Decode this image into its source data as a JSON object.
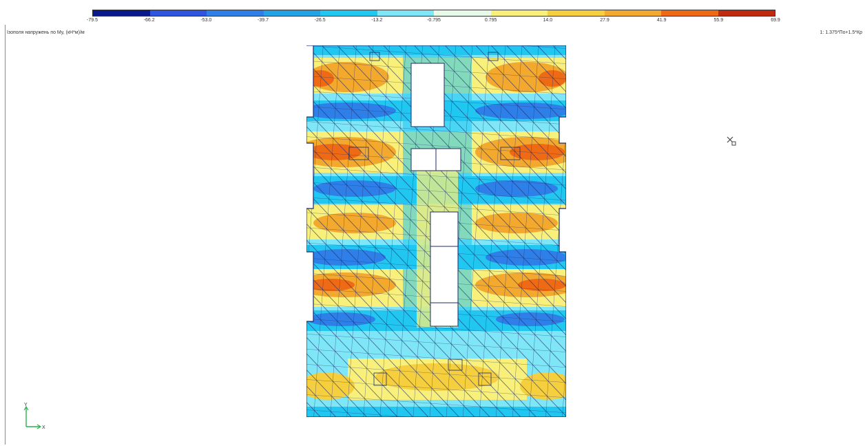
{
  "result_title": "Ізополя напружень по My, (кН*м)/м",
  "load_combination": "1: 1.375*По+1.5*Кр",
  "legend": {
    "values": [
      "-79.5",
      "-66.2",
      "-53.0",
      "-39.7",
      "-26.5",
      "-13.2",
      "-0.795",
      "0.795",
      "14.0",
      "27.9",
      "41.9",
      "55.9",
      "69.9"
    ],
    "colors": [
      "#0a1a8c",
      "#2e55e0",
      "#2f7fe8",
      "#24a2e6",
      "#21c7f0",
      "#7fe6f8",
      "#e8fbe8",
      "#f8f07a",
      "#f6cf3e",
      "#f3a82e",
      "#ee6a14",
      "#c02a10"
    ]
  },
  "axes": {
    "x_label": "X",
    "y_label": "Y"
  },
  "icons": {
    "cursor_marker": "move-cursor-icon"
  }
}
